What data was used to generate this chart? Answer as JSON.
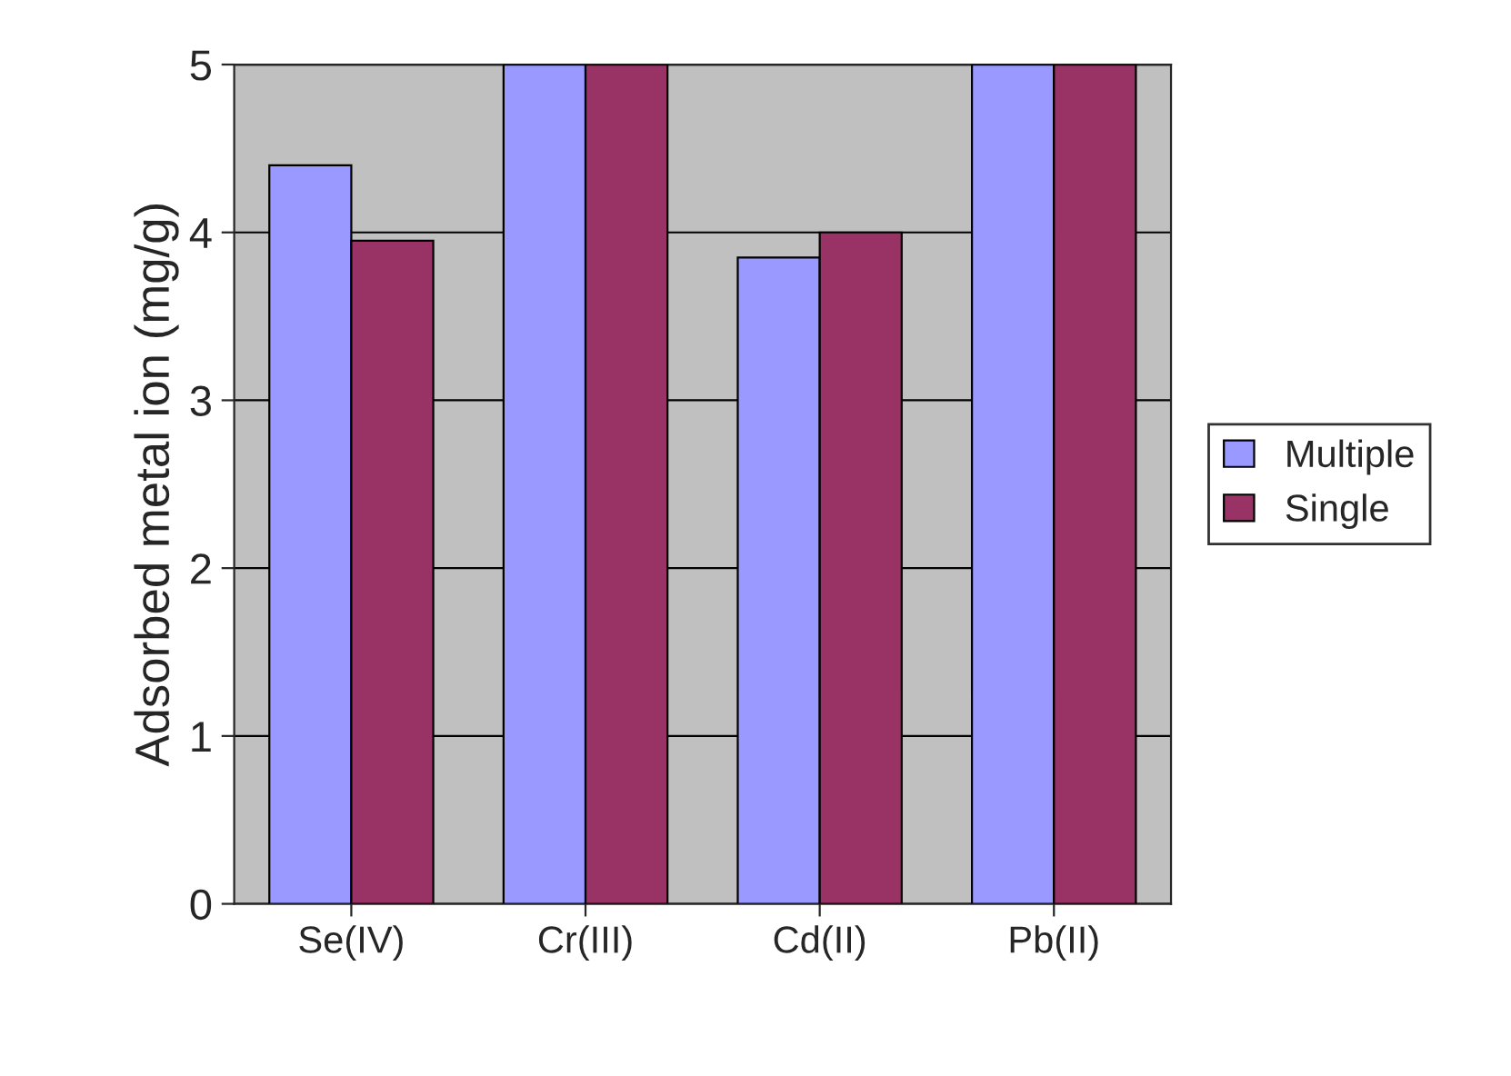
{
  "chart_data": {
    "type": "bar",
    "ylabel": "Adsorbed metal ion (mg/g)",
    "categories": [
      "Se(IV)",
      "Cr(III)",
      "Cd(II)",
      "Pb(II)"
    ],
    "series": [
      {
        "name": "Multiple",
        "color": "#9999ff",
        "values": [
          4.4,
          5.0,
          3.85,
          5.0
        ]
      },
      {
        "name": "Single",
        "color": "#993366",
        "values": [
          3.95,
          5.0,
          4.0,
          5.0
        ]
      }
    ],
    "ylim": [
      0,
      5
    ],
    "yticks": [
      0,
      1,
      2,
      3,
      4,
      5
    ],
    "grid": "y",
    "legend": "right"
  }
}
